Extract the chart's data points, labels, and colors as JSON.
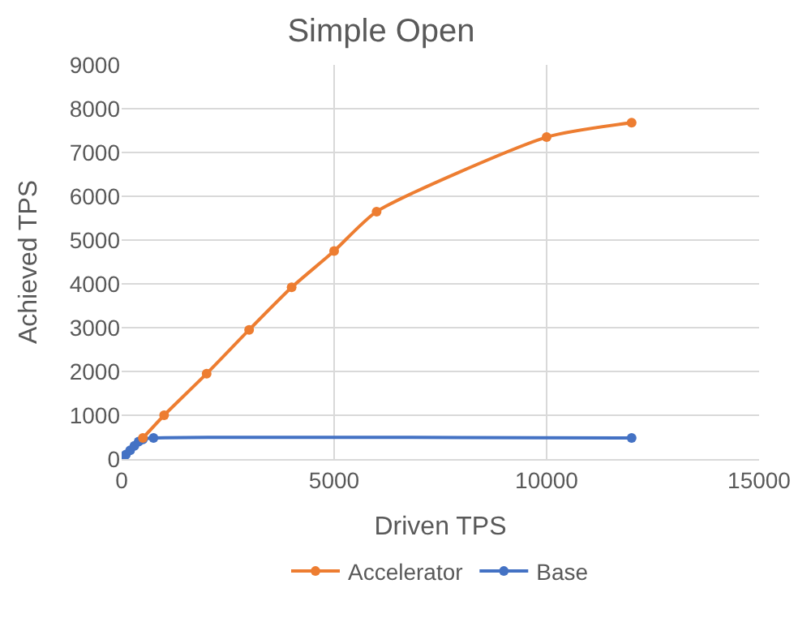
{
  "chart_data": {
    "type": "line",
    "title": "Simple Open",
    "xlabel": "Driven TPS",
    "ylabel": "Achieved TPS",
    "xlim": [
      0,
      15000
    ],
    "xticks": [
      0,
      5000,
      10000,
      15000
    ],
    "ylim": [
      0,
      9000
    ],
    "yticks": [
      0,
      1000,
      2000,
      3000,
      4000,
      5000,
      6000,
      7000,
      8000,
      9000
    ],
    "grid": true,
    "legend": "bottom",
    "marker": "circle",
    "line_style": "solid",
    "series": [
      {
        "name": "Accelerator",
        "color": "#ed7d31",
        "x": [
          500,
          1000,
          2000,
          3000,
          4000,
          5000,
          6000,
          10000,
          12000
        ],
        "values": [
          480,
          1000,
          1950,
          2950,
          3920,
          4750,
          5650,
          7350,
          7680
        ]
      },
      {
        "name": "Base",
        "color": "#4472c4",
        "x": [
          0,
          50,
          100,
          200,
          300,
          400,
          500,
          750,
          12000
        ],
        "values": [
          0,
          50,
          100,
          200,
          300,
          400,
          450,
          480,
          480
        ]
      }
    ]
  }
}
